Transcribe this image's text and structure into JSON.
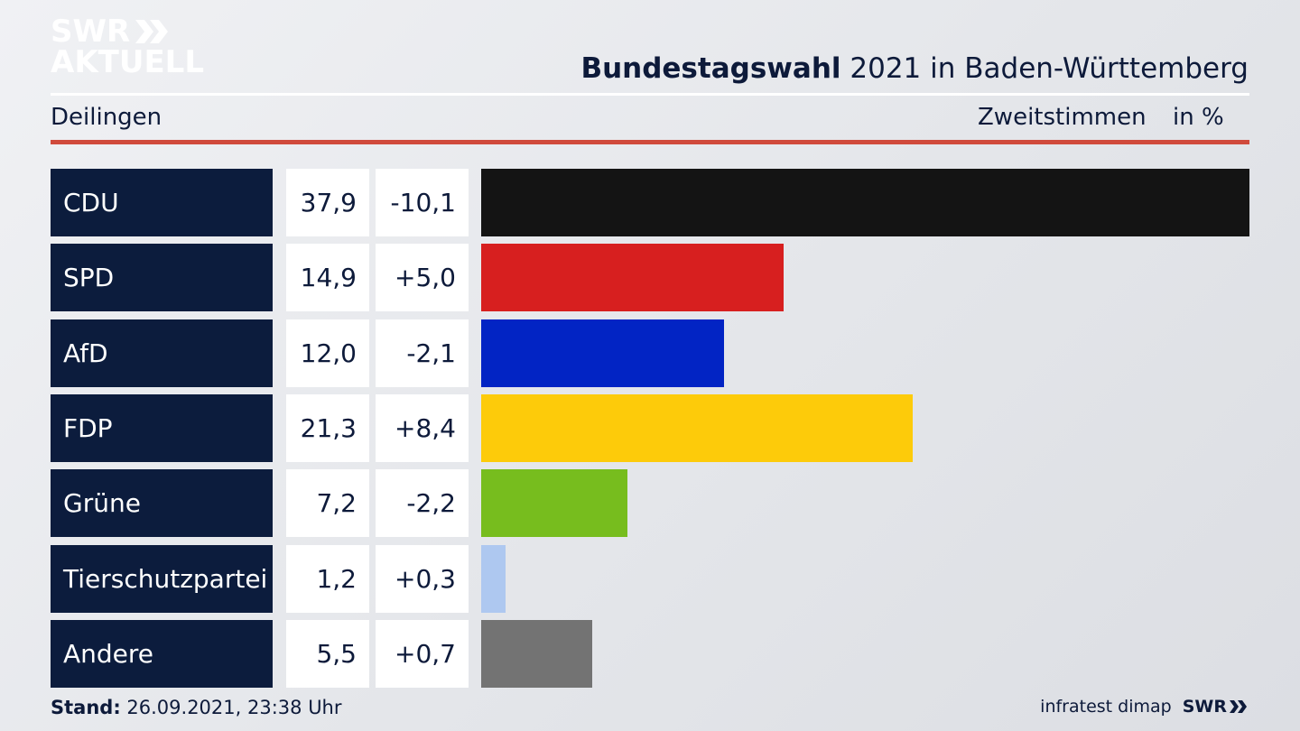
{
  "branding": {
    "logo_line1": "SWR",
    "logo_line2": "AKTUELL",
    "logo_chevrons": "chevron-double-right-icon",
    "footer_source": "infratest dimap",
    "footer_brand": "SWR"
  },
  "header": {
    "title_bold": "Bundestagswahl",
    "title_rest": "2021 in Baden-Württemberg",
    "location": "Deilingen",
    "measure": "Zweitstimmen",
    "unit": "in %"
  },
  "footer": {
    "stand_label": "Stand:",
    "stand_value": "26.09.2021, 23:38 Uhr"
  },
  "colors": {
    "accent_red": "#d04a3c",
    "name_cell": "#0c1c3d"
  },
  "chart_data": {
    "type": "bar",
    "orientation": "horizontal",
    "categories": [
      "CDU",
      "SPD",
      "AfD",
      "FDP",
      "Grüne",
      "Tierschutzpartei",
      "Andere"
    ],
    "values": [
      37.9,
      14.9,
      12.0,
      21.3,
      7.2,
      1.2,
      5.5
    ],
    "value_labels": [
      "37,9",
      "14,9",
      "12,0",
      "21,3",
      "7,2",
      "1,2",
      "5,5"
    ],
    "diff_labels": [
      "-10,1",
      "+5,0",
      "-2,1",
      "+8,4",
      "-2,2",
      "+0,3",
      "+0,7"
    ],
    "diffs": [
      -10.1,
      5.0,
      -2.1,
      8.4,
      -2.2,
      0.3,
      0.7
    ],
    "colors": [
      "#141414",
      "#d71f1f",
      "#0224c4",
      "#fdcb0a",
      "#77bd1e",
      "#aec8f0",
      "#737373"
    ],
    "xlim": [
      0,
      37.9
    ],
    "grid": false,
    "legend": "none"
  }
}
